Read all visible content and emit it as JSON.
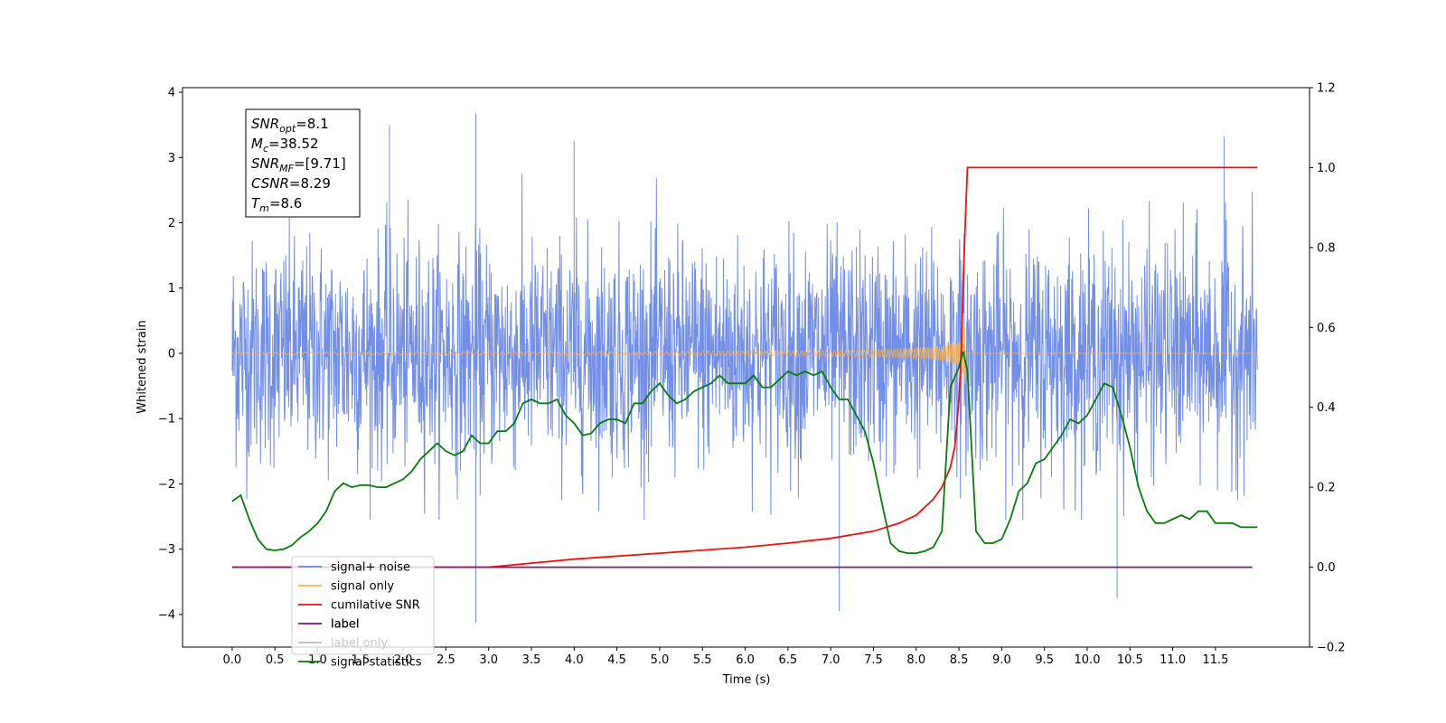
{
  "chart_data": {
    "type": "line",
    "xlabel": "Time (s)",
    "ylabel_left": "Whitened strain",
    "ylabel_right": "",
    "xlim": [
      -0.58,
      12.6
    ],
    "ylim_left": [
      -4.5,
      4.07
    ],
    "ylim_right": [
      -0.2,
      1.2
    ],
    "x_ticks": [
      0.0,
      0.5,
      1.0,
      1.5,
      2.0,
      2.5,
      3.0,
      3.5,
      4.0,
      4.5,
      5.0,
      5.5,
      6.0,
      6.5,
      7.0,
      7.5,
      8.0,
      8.5,
      9.0,
      9.5,
      10.0,
      10.5,
      11.0,
      11.5
    ],
    "x_tick_labels": [
      "0.0",
      "0.5",
      "1.0",
      "1.5",
      "2.0",
      "2.5",
      "3.0",
      "3.5",
      "4.0",
      "4.5",
      "5.0",
      "5.5",
      "6.0",
      "6.5",
      "7.0",
      "7.5",
      "8.0",
      "8.5",
      "9.0",
      "9.5",
      "10.0",
      "10.5",
      "11.0",
      "11.5"
    ],
    "y_ticks_left": [
      4,
      3,
      2,
      1,
      0,
      -1,
      -2,
      -3,
      -4
    ],
    "y_tick_labels_left": [
      "4",
      "3",
      "2",
      "1",
      "0",
      "−1",
      "−2",
      "−3",
      "−4"
    ],
    "y_ticks_right": [
      1.2,
      1.0,
      0.8,
      0.6,
      0.4,
      0.2,
      0.0,
      -0.2
    ],
    "y_tick_labels_right": [
      "1.2",
      "1.0",
      "0.8",
      "0.6",
      "0.4",
      "0.2",
      "0.0",
      "−0.2"
    ],
    "grid": false,
    "legend_position": "lower-left",
    "series": [
      {
        "name": "signal+ noise",
        "axis": "left",
        "color": "#6c88e5",
        "description_values": "dense noise time series, approx amplitude range -2.5 to 2.8 with outliers",
        "x_range": [
          0.0,
          11.99
        ],
        "outliers": [
          {
            "x": 1.84,
            "y": 3.5
          },
          {
            "x": 2.85,
            "y": 3.67
          },
          {
            "x": 2.85,
            "y": -4.12
          },
          {
            "x": 4.0,
            "y": 3.25
          },
          {
            "x": 7.1,
            "y": -3.95
          },
          {
            "x": 10.35,
            "y": -3.75
          },
          {
            "x": 11.6,
            "y": 3.32
          }
        ]
      },
      {
        "name": "signal only",
        "axis": "left",
        "color": "#ffb347",
        "description_values": "chirp near zero, growing amplitude up to ~1.2 at merger t≈8.55s"
      },
      {
        "name": "cumilative SNR",
        "axis": "right",
        "color": "#ee1111",
        "x": [
          0.0,
          3.0,
          4.0,
          5.0,
          6.0,
          6.5,
          7.0,
          7.5,
          7.8,
          8.0,
          8.2,
          8.3,
          8.4,
          8.45,
          8.5,
          8.53,
          8.55,
          8.58,
          8.6,
          9.0,
          11.99
        ],
        "values": [
          0.0,
          0.0,
          0.02,
          0.035,
          0.05,
          0.06,
          0.072,
          0.09,
          0.11,
          0.13,
          0.17,
          0.2,
          0.25,
          0.3,
          0.42,
          0.55,
          0.72,
          0.9,
          1.0,
          1.0,
          1.0
        ]
      },
      {
        "name": "label",
        "axis": "right",
        "color": "#7b1a7b",
        "x": [
          0.0,
          11.93
        ],
        "values": [
          0.0,
          0.0
        ]
      },
      {
        "name": "label only",
        "axis": "right",
        "color": "#ffffff",
        "legend_hidden_text": true,
        "x": [],
        "values": []
      },
      {
        "name": "signal statistics",
        "axis": "right",
        "color": "#0b7a0b",
        "x": [
          0.0,
          0.1,
          0.2,
          0.3,
          0.4,
          0.5,
          0.6,
          0.7,
          0.8,
          0.9,
          1.0,
          1.1,
          1.2,
          1.3,
          1.4,
          1.5,
          1.6,
          1.7,
          1.8,
          1.9,
          2.0,
          2.1,
          2.2,
          2.3,
          2.4,
          2.5,
          2.6,
          2.7,
          2.8,
          2.9,
          3.0,
          3.1,
          3.2,
          3.3,
          3.4,
          3.5,
          3.6,
          3.7,
          3.8,
          3.9,
          4.0,
          4.1,
          4.2,
          4.3,
          4.4,
          4.5,
          4.6,
          4.7,
          4.8,
          4.9,
          5.0,
          5.1,
          5.2,
          5.3,
          5.4,
          5.5,
          5.6,
          5.7,
          5.8,
          5.9,
          6.0,
          6.1,
          6.2,
          6.3,
          6.4,
          6.5,
          6.6,
          6.7,
          6.8,
          6.9,
          7.0,
          7.1,
          7.2,
          7.3,
          7.4,
          7.5,
          7.6,
          7.7,
          7.8,
          7.9,
          8.0,
          8.1,
          8.2,
          8.3,
          8.4,
          8.5,
          8.55,
          8.6,
          8.7,
          8.8,
          8.9,
          9.0,
          9.1,
          9.2,
          9.3,
          9.4,
          9.5,
          9.6,
          9.7,
          9.8,
          9.9,
          10.0,
          10.1,
          10.2,
          10.3,
          10.4,
          10.5,
          10.6,
          10.7,
          10.8,
          10.9,
          11.0,
          11.1,
          11.2,
          11.3,
          11.4,
          11.5,
          11.6,
          11.7,
          11.8,
          11.9,
          11.99
        ],
        "values": [
          0.165,
          0.18,
          0.12,
          0.07,
          0.045,
          0.042,
          0.045,
          0.055,
          0.075,
          0.09,
          0.11,
          0.14,
          0.19,
          0.21,
          0.2,
          0.205,
          0.205,
          0.2,
          0.2,
          0.21,
          0.22,
          0.24,
          0.27,
          0.29,
          0.31,
          0.29,
          0.28,
          0.29,
          0.33,
          0.31,
          0.31,
          0.34,
          0.34,
          0.36,
          0.41,
          0.42,
          0.41,
          0.41,
          0.42,
          0.38,
          0.36,
          0.33,
          0.335,
          0.36,
          0.37,
          0.37,
          0.36,
          0.41,
          0.41,
          0.44,
          0.46,
          0.43,
          0.41,
          0.42,
          0.44,
          0.45,
          0.46,
          0.48,
          0.46,
          0.46,
          0.46,
          0.48,
          0.45,
          0.45,
          0.47,
          0.49,
          0.48,
          0.49,
          0.48,
          0.49,
          0.45,
          0.42,
          0.42,
          0.38,
          0.34,
          0.26,
          0.16,
          0.06,
          0.04,
          0.035,
          0.035,
          0.04,
          0.05,
          0.09,
          0.45,
          0.5,
          0.54,
          0.49,
          0.09,
          0.06,
          0.06,
          0.07,
          0.12,
          0.19,
          0.21,
          0.26,
          0.27,
          0.3,
          0.33,
          0.37,
          0.36,
          0.38,
          0.42,
          0.46,
          0.45,
          0.38,
          0.3,
          0.2,
          0.14,
          0.11,
          0.11,
          0.12,
          0.13,
          0.12,
          0.14,
          0.14,
          0.11,
          0.11,
          0.11,
          0.1,
          0.1,
          0.1
        ]
      }
    ],
    "info_box": [
      {
        "sym": "SNR",
        "sub": "opt",
        "rest": "=8.1"
      },
      {
        "sym": "M",
        "sub": "c",
        "rest": "=38.52"
      },
      {
        "sym": "SNR",
        "sub": "MF",
        "rest": "=[9.71]"
      },
      {
        "sym": "CSNR",
        "sub": "",
        "rest": "=8.29"
      },
      {
        "sym": "T",
        "sub": "m",
        "rest": "=8.6"
      }
    ],
    "legend": [
      {
        "label": "signal+ noise",
        "color": "#6c88e5"
      },
      {
        "label": "signal only",
        "color": "#ffb347"
      },
      {
        "label": "cumilative SNR",
        "color": "#ee1111"
      },
      {
        "label": "label",
        "color": "#7b1a7b"
      },
      {
        "label": "label only",
        "color": "#bbbbbb"
      },
      {
        "label": "signal statistics",
        "color": "#0b7a0b"
      }
    ]
  }
}
